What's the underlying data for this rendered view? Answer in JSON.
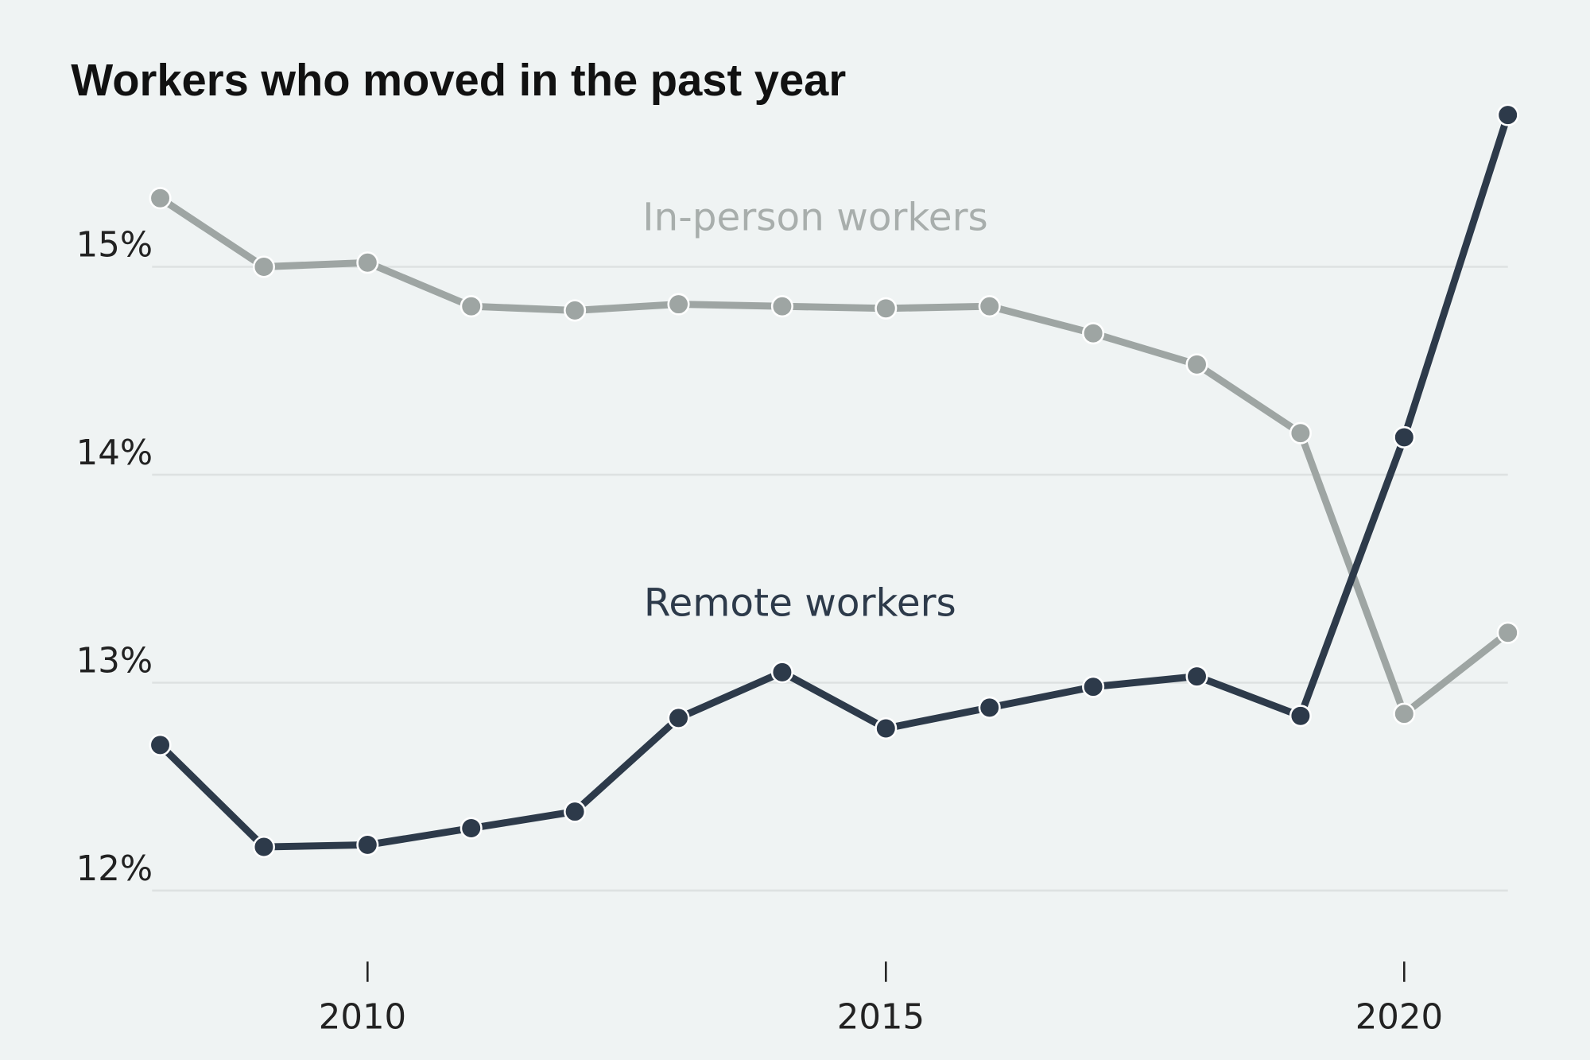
{
  "chart_data": {
    "type": "line",
    "title": "Workers who moved in the past year",
    "x": [
      2008,
      2009,
      2010,
      2011,
      2012,
      2013,
      2014,
      2015,
      2016,
      2017,
      2018,
      2019,
      2020,
      2021
    ],
    "series": [
      {
        "name": "In-person workers",
        "color": "#9ea5a3",
        "values": [
          15.33,
          15.0,
          15.02,
          14.81,
          14.79,
          14.82,
          14.81,
          14.8,
          14.81,
          14.68,
          14.53,
          14.2,
          12.85,
          13.24
        ]
      },
      {
        "name": "Remote workers",
        "color": "#2d3a4a",
        "values": [
          12.7,
          12.21,
          12.22,
          12.3,
          12.38,
          12.83,
          13.05,
          12.78,
          12.88,
          12.98,
          13.03,
          12.84,
          14.18,
          15.73
        ]
      }
    ],
    "xlim": [
      2008,
      2021
    ],
    "xticks": [
      2010,
      2015,
      2020
    ],
    "ylim": [
      12,
      15.8
    ],
    "yticks": [
      {
        "value": 12,
        "label": "12%"
      },
      {
        "value": 13,
        "label": "13%"
      },
      {
        "value": 14,
        "label": "14%"
      },
      {
        "value": 15,
        "label": "15%"
      }
    ],
    "grid": true
  }
}
